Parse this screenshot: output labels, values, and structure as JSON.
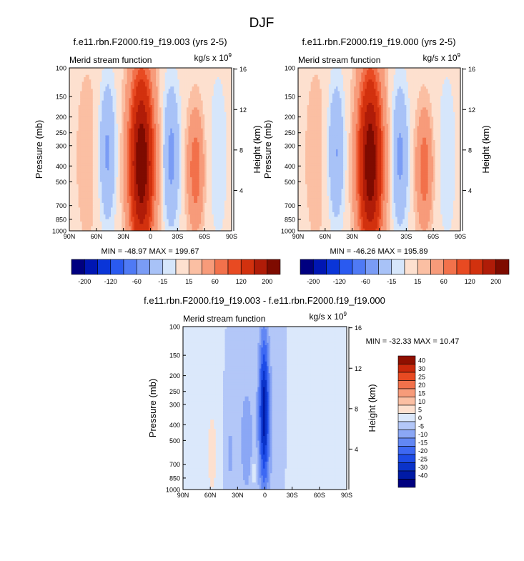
{
  "figure": {
    "title": "DJF"
  },
  "chart_data": [
    {
      "type": "heatmap",
      "title": "f.e11.rbn.F2000.f19_f19.003 (yrs 2-5)",
      "subtitle_left": "Merid stream function",
      "units": "kg/s x 10",
      "units_exp": "9",
      "ylabel": "Pressure (mb)",
      "y2label": "Height (km)",
      "x_ticks": [
        "90N",
        "60N",
        "30N",
        "0",
        "30S",
        "60S",
        "90S"
      ],
      "x_values": [
        90,
        60,
        30,
        0,
        -30,
        -60,
        -90
      ],
      "y_ticks": [
        "100",
        "150",
        "200",
        "250",
        "300",
        "400",
        "500",
        "700",
        "850",
        "1000"
      ],
      "y_values": [
        100,
        150,
        200,
        250,
        300,
        400,
        500,
        700,
        850,
        1000
      ],
      "y2_ticks": [
        "16",
        "12",
        "8",
        "4"
      ],
      "y2_values": [
        16,
        12,
        8,
        4
      ],
      "min_label": "MIN = -48.97",
      "max_label": "MAX = 199.67",
      "min": -48.97,
      "max": 199.67,
      "levels": [
        -200,
        -160,
        -120,
        -80,
        -60,
        -40,
        -15,
        -5,
        5,
        15,
        40,
        60,
        80,
        120,
        160,
        200
      ],
      "level_labels": [
        "-200",
        "-120",
        "-60",
        "-15",
        "15",
        "60",
        "120",
        "200"
      ],
      "features": [
        {
          "lat": 10,
          "p": 380,
          "amp": 198,
          "sigx": 9,
          "sigp": 330
        },
        {
          "lat": 48,
          "p": 330,
          "amp": -45,
          "sigx": 6,
          "sigp": 220
        },
        {
          "lat": -23,
          "p": 350,
          "amp": -48,
          "sigx": 6,
          "sigp": 230
        },
        {
          "lat": -50,
          "p": 420,
          "amp": 58,
          "sigx": 6,
          "sigp": 230
        },
        {
          "lat": 70,
          "p": 350,
          "amp": 8,
          "sigx": 12,
          "sigp": 420
        },
        {
          "lat": -75,
          "p": 350,
          "amp": -8,
          "sigx": 10,
          "sigp": 400
        }
      ]
    },
    {
      "type": "heatmap",
      "title": "f.e11.rbn.F2000.f19_f19.000 (yrs 2-5)",
      "subtitle_left": "Merid stream function",
      "units": "kg/s x 10",
      "units_exp": "9",
      "ylabel": "Pressure (mb)",
      "y2label": "Height (km)",
      "x_ticks": [
        "90N",
        "60N",
        "30N",
        "0",
        "30S",
        "60S",
        "90S"
      ],
      "x_values": [
        90,
        60,
        30,
        0,
        -30,
        -60,
        -90
      ],
      "y_ticks": [
        "100",
        "150",
        "200",
        "250",
        "300",
        "400",
        "500",
        "700",
        "850",
        "1000"
      ],
      "y_values": [
        100,
        150,
        200,
        250,
        300,
        400,
        500,
        700,
        850,
        1000
      ],
      "y2_ticks": [
        "16",
        "12",
        "8",
        "4"
      ],
      "y2_values": [
        16,
        12,
        8,
        4
      ],
      "min_label": "MIN = -46.26",
      "max_label": "MAX = 195.89",
      "min": -46.26,
      "max": 195.89,
      "levels": [
        -200,
        -160,
        -120,
        -80,
        -60,
        -40,
        -15,
        -5,
        5,
        15,
        40,
        60,
        80,
        120,
        160,
        200
      ],
      "level_labels": [
        "-200",
        "-120",
        "-60",
        "-15",
        "15",
        "60",
        "120",
        "200"
      ],
      "features": [
        {
          "lat": 10,
          "p": 380,
          "amp": 195,
          "sigx": 9,
          "sigp": 330
        },
        {
          "lat": 48,
          "p": 330,
          "amp": -42,
          "sigx": 6,
          "sigp": 220
        },
        {
          "lat": -23,
          "p": 350,
          "amp": -46,
          "sigx": 6,
          "sigp": 230
        },
        {
          "lat": -50,
          "p": 420,
          "amp": 56,
          "sigx": 6,
          "sigp": 230
        },
        {
          "lat": 70,
          "p": 350,
          "amp": 8,
          "sigx": 12,
          "sigp": 420
        },
        {
          "lat": -75,
          "p": 350,
          "amp": -8,
          "sigx": 10,
          "sigp": 400
        }
      ]
    },
    {
      "type": "heatmap",
      "title": "f.e11.rbn.F2000.f19_f19.003 - f.e11.rbn.F2000.f19_f19.000",
      "subtitle_left": "Merid stream function",
      "units": "kg/s x 10",
      "units_exp": "9",
      "ylabel": "Pressure (mb)",
      "y2label": "Height (km)",
      "x_ticks": [
        "90N",
        "60N",
        "30N",
        "0",
        "30S",
        "60S",
        "90S"
      ],
      "x_values": [
        90,
        60,
        30,
        0,
        -30,
        -60,
        -90
      ],
      "y_ticks": [
        "100",
        "150",
        "200",
        "250",
        "300",
        "400",
        "500",
        "700",
        "850",
        "1000"
      ],
      "y_values": [
        100,
        150,
        200,
        250,
        300,
        400,
        500,
        700,
        850,
        1000
      ],
      "y2_ticks": [
        "16",
        "12",
        "8",
        "4"
      ],
      "y2_values": [
        16,
        12,
        8,
        4
      ],
      "min_label": "MIN = -32.33",
      "max_label": "MAX =  10.47",
      "min": -32.33,
      "max": 10.47,
      "levels": [
        -40,
        -30,
        -25,
        -20,
        -15,
        -10,
        -5,
        0,
        5,
        10,
        15,
        20,
        25,
        30,
        40
      ],
      "level_labels": [
        "40",
        "30",
        "25",
        "20",
        "15",
        "10",
        "5",
        "0",
        "-5",
        "-10",
        "-15",
        "-20",
        "-25",
        "-30",
        "-40"
      ],
      "features": [
        {
          "lat": 1,
          "p": 330,
          "amp": -32,
          "sigx": 4,
          "sigp": 260
        },
        {
          "lat": 20,
          "p": 500,
          "amp": -8,
          "sigx": 6,
          "sigp": 330
        },
        {
          "lat": 38,
          "p": 600,
          "amp": -6,
          "sigx": 4,
          "sigp": 260
        },
        {
          "lat": 58,
          "p": 600,
          "amp": 7,
          "sigx": 5,
          "sigp": 360
        },
        {
          "lat": 12,
          "p": 780,
          "amp": 7,
          "sigx": 2,
          "sigp": 90
        },
        {
          "lat": -12,
          "p": 450,
          "amp": -4,
          "sigx": 8,
          "sigp": 400
        },
        {
          "lat": -35,
          "p": 500,
          "amp": 3,
          "sigx": 10,
          "sigp": 450
        }
      ]
    }
  ],
  "palette": {
    "red_blue_16": [
      "#000080",
      "#0016b3",
      "#0a35d8",
      "#2a5af0",
      "#4f7af5",
      "#7a9cf5",
      "#a8c2f7",
      "#d6e6fb",
      "#fde0cf",
      "#fbbfa3",
      "#f79b7a",
      "#f2714b",
      "#e84a22",
      "#d2310e",
      "#b01c08",
      "#7e0b00"
    ],
    "red_blue_16b": [
      "#000080",
      "#001aa5",
      "#0a33c9",
      "#1d4be6",
      "#3d68f3",
      "#6287f4",
      "#8ba7f5",
      "#b3c7f8",
      "#dbe8fb",
      "#fde0cf",
      "#fbbfa3",
      "#f79b7a",
      "#f2714b",
      "#e84a22",
      "#c9280b",
      "#8f0f00"
    ]
  }
}
